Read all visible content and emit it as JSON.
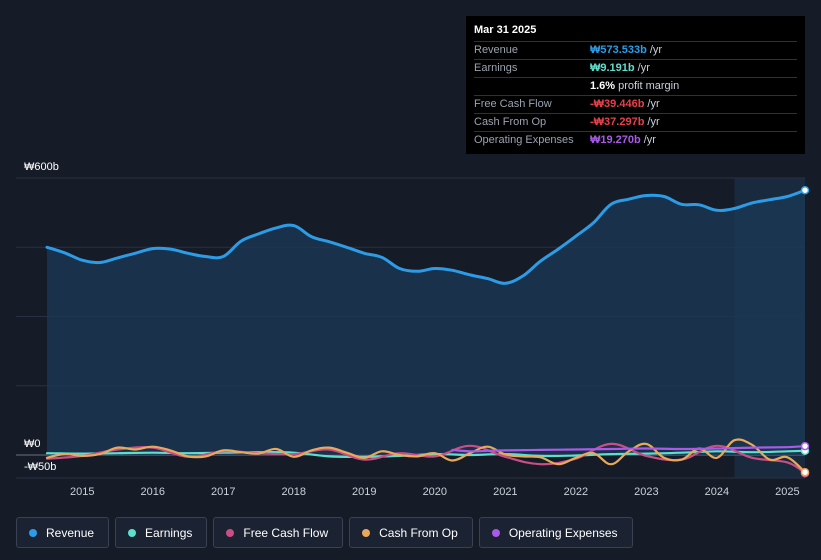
{
  "tooltip": {
    "date": "Mar 31 2025",
    "rows": [
      {
        "label": "Revenue",
        "value": "₩573.533b",
        "unit": "/yr",
        "color": "#2d9ce6"
      },
      {
        "label": "Earnings",
        "value": "₩9.191b",
        "unit": "/yr",
        "color": "#5ce0cd"
      },
      {
        "label": "",
        "value": "1.6%",
        "unit": "profit margin",
        "color": "#ffffff"
      },
      {
        "label": "Free Cash Flow",
        "value": "-₩39.446b",
        "unit": "/yr",
        "color": "#e8404a"
      },
      {
        "label": "Cash From Op",
        "value": "-₩37.297b",
        "unit": "/yr",
        "color": "#e8404a"
      },
      {
        "label": "Operating Expenses",
        "value": "₩19.270b",
        "unit": "/yr",
        "color": "#a95be8"
      }
    ]
  },
  "legend": [
    {
      "label": "Revenue",
      "color": "#2d9ce6"
    },
    {
      "label": "Earnings",
      "color": "#5ce0cd"
    },
    {
      "label": "Free Cash Flow",
      "color": "#c94e85"
    },
    {
      "label": "Cash From Op",
      "color": "#e8a95c"
    },
    {
      "label": "Operating Expenses",
      "color": "#a95be8"
    }
  ],
  "chart_data": {
    "type": "line",
    "title": "",
    "ylim": [
      -50,
      600
    ],
    "y_tick_labels": [
      "₩600b",
      "₩0",
      "-₩50b"
    ],
    "y_ticks": [
      600,
      0,
      -50
    ],
    "xlim": [
      2014.5,
      2025.25
    ],
    "x_tick_labels": [
      "2015",
      "2016",
      "2017",
      "2018",
      "2019",
      "2020",
      "2021",
      "2022",
      "2023",
      "2024",
      "2025"
    ],
    "x_ticks": [
      2015,
      2016,
      2017,
      2018,
      2019,
      2020,
      2021,
      2022,
      2023,
      2024,
      2025
    ],
    "highlight_start": 2024.25,
    "series": [
      {
        "name": "Revenue",
        "color": "#2d9ce6",
        "fill": true,
        "x": [
          2014.5,
          2014.75,
          2015.0,
          2015.25,
          2015.5,
          2015.75,
          2016.0,
          2016.25,
          2016.5,
          2016.75,
          2017.0,
          2017.25,
          2017.5,
          2017.75,
          2018.0,
          2018.25,
          2018.5,
          2018.75,
          2019.0,
          2019.25,
          2019.5,
          2019.75,
          2020.0,
          2020.25,
          2020.5,
          2020.75,
          2021.0,
          2021.25,
          2021.5,
          2021.75,
          2022.0,
          2022.25,
          2022.5,
          2022.75,
          2023.0,
          2023.25,
          2023.5,
          2023.75,
          2024.0,
          2024.25,
          2024.5,
          2024.75,
          2025.0,
          2025.25
        ],
        "values": [
          450,
          438,
          422,
          417,
          427,
          437,
          447,
          446,
          437,
          430,
          430,
          463,
          479,
          492,
          497,
          473,
          462,
          450,
          437,
          428,
          404,
          398,
          404,
          400,
          390,
          382,
          372,
          388,
          420,
          446,
          474,
          503,
          543,
          554,
          562,
          560,
          543,
          542,
          530,
          534,
          546,
          553,
          560,
          573.5
        ]
      },
      {
        "name": "Earnings",
        "color": "#5ce0cd",
        "fill": false,
        "x": [
          2014.5,
          2015.0,
          2015.5,
          2016.0,
          2016.5,
          2017.0,
          2017.5,
          2018.0,
          2018.5,
          2019.0,
          2019.5,
          2020.0,
          2020.5,
          2021.0,
          2021.5,
          2022.0,
          2022.5,
          2023.0,
          2023.5,
          2024.0,
          2024.5,
          2025.0,
          2025.25
        ],
        "values": [
          4,
          3,
          4,
          5,
          4,
          5,
          6,
          5,
          -3,
          -4,
          -2,
          2,
          0,
          2,
          -2,
          -1,
          2,
          3,
          5,
          8,
          6,
          8,
          9.2
        ]
      },
      {
        "name": "Free Cash Flow",
        "color": "#c94e85",
        "fill": false,
        "x": [
          2014.5,
          2015.0,
          2015.5,
          2016.0,
          2016.5,
          2017.0,
          2017.5,
          2018.0,
          2018.5,
          2019.0,
          2019.5,
          2020.0,
          2020.5,
          2021.0,
          2021.5,
          2022.0,
          2022.5,
          2023.0,
          2023.5,
          2024.0,
          2024.5,
          2025.0,
          2025.25
        ],
        "values": [
          -8,
          -2,
          12,
          16,
          -4,
          8,
          4,
          2,
          12,
          -10,
          4,
          -3,
          20,
          -4,
          -20,
          -8,
          24,
          -2,
          -10,
          20,
          -6,
          -16,
          -39.4
        ]
      },
      {
        "name": "Cash From Op",
        "color": "#e8a95c",
        "fill": false,
        "x": [
          2014.5,
          2014.75,
          2015.0,
          2015.25,
          2015.5,
          2015.75,
          2016.0,
          2016.25,
          2016.5,
          2016.75,
          2017.0,
          2017.25,
          2017.5,
          2017.75,
          2018.0,
          2018.25,
          2018.5,
          2018.75,
          2019.0,
          2019.25,
          2019.5,
          2019.75,
          2020.0,
          2020.25,
          2020.5,
          2020.75,
          2021.0,
          2021.25,
          2021.5,
          2021.75,
          2022.0,
          2022.25,
          2022.5,
          2022.75,
          2023.0,
          2023.25,
          2023.5,
          2023.75,
          2024.0,
          2024.25,
          2024.5,
          2024.75,
          2025.0,
          2025.25
        ],
        "values": [
          -6,
          2,
          -2,
          2,
          16,
          12,
          18,
          10,
          -3,
          -3,
          10,
          6,
          3,
          13,
          -4,
          10,
          16,
          5,
          -6,
          8,
          0,
          -3,
          4,
          -12,
          4,
          18,
          1,
          -3,
          -5,
          -20,
          -6,
          4,
          -20,
          8,
          24,
          -6,
          -10,
          14,
          -6,
          32,
          22,
          -10,
          -5,
          -37.3
        ]
      },
      {
        "name": "Operating Expenses",
        "color": "#a95be8",
        "fill": false,
        "x": [
          2020.25,
          2020.5,
          2020.75,
          2021.0,
          2021.5,
          2022.0,
          2022.5,
          2023.0,
          2023.5,
          2024.0,
          2024.5,
          2025.0,
          2025.25
        ],
        "values": [
          11,
          8,
          9,
          10,
          11,
          12,
          13,
          14,
          13,
          14,
          16,
          17,
          19.3
        ]
      }
    ]
  }
}
